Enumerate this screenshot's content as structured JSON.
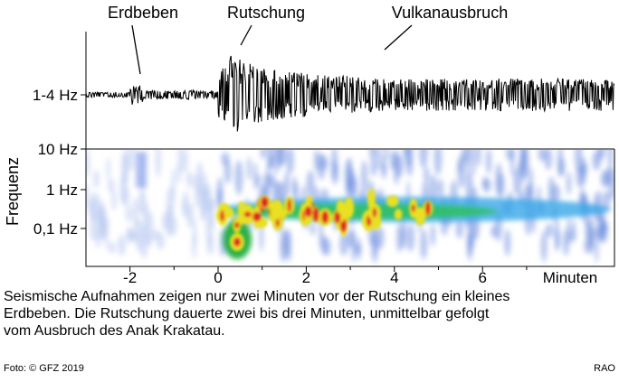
{
  "annotations": [
    "Erdbeben",
    "Rutschung",
    "Vulkanausbruch"
  ],
  "waveform_label": "1-4 Hz",
  "frequency_axis": {
    "title": "Frequenz",
    "labels": [
      "10 Hz",
      "1 Hz",
      "0,1 Hz"
    ]
  },
  "time_axis": {
    "ticks": [
      "-2",
      "0",
      "2",
      "4",
      "6"
    ],
    "unit": "Minuten"
  },
  "caption": [
    "Seismische Aufnahmen zeigen nur zwei Minuten vor der Rutschung ein kleines",
    "Erdbeben. Die Rutschung dauerte zwei bis drei Minuten, unmittelbar gefolgt",
    "vom Ausbruch des Anak Krakatau."
  ],
  "credit": "Foto: ©  GFZ 2019",
  "author": "RAO"
}
